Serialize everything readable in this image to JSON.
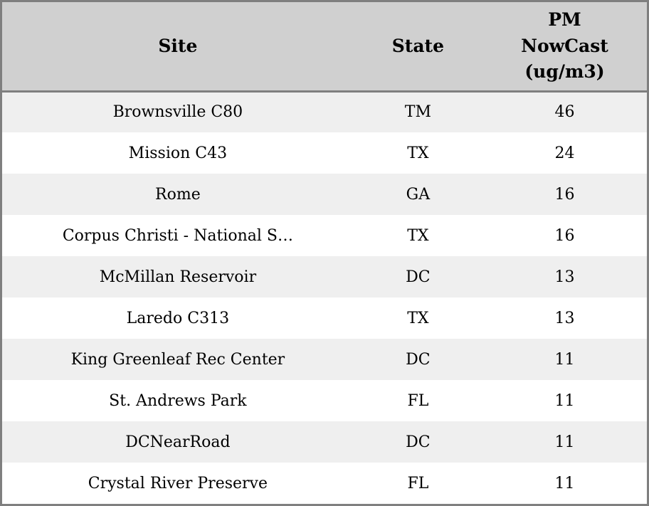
{
  "colors": {
    "border": "#7f7f7f",
    "header_bg": "#d0d0d0",
    "row_stripe_bg": "#efefef",
    "row_plain_bg": "#ffffff",
    "text": "#000000"
  },
  "table": {
    "headers": {
      "site": "Site",
      "state": "State",
      "pm": "PM\nNowCast\n(ug/m3)"
    },
    "rows": [
      {
        "site": "Brownsville C80",
        "state": "TM",
        "value": "46"
      },
      {
        "site": "Mission C43",
        "state": "TX",
        "value": "24"
      },
      {
        "site": "Rome",
        "state": "GA",
        "value": "16"
      },
      {
        "site": "Corpus Christi - National S…",
        "state": "TX",
        "value": "16"
      },
      {
        "site": "McMillan Reservoir",
        "state": "DC",
        "value": "13"
      },
      {
        "site": "Laredo C313",
        "state": "TX",
        "value": "13"
      },
      {
        "site": "King Greenleaf Rec Center",
        "state": "DC",
        "value": "11"
      },
      {
        "site": "St. Andrews Park",
        "state": "FL",
        "value": "11"
      },
      {
        "site": "DCNearRoad",
        "state": "DC",
        "value": "11"
      },
      {
        "site": "Crystal River Preserve",
        "state": "FL",
        "value": "11"
      }
    ]
  },
  "chart_data": {
    "type": "table",
    "title": "",
    "columns": [
      "Site",
      "State",
      "PM NowCast (ug/m3)"
    ],
    "rows": [
      [
        "Brownsville C80",
        "TM",
        46
      ],
      [
        "Mission C43",
        "TX",
        24
      ],
      [
        "Rome",
        "GA",
        16
      ],
      [
        "Corpus Christi - National S…",
        "TX",
        16
      ],
      [
        "McMillan Reservoir",
        "DC",
        13
      ],
      [
        "Laredo C313",
        "TX",
        13
      ],
      [
        "King Greenleaf Rec Center",
        "DC",
        11
      ],
      [
        "St. Andrews Park",
        "FL",
        11
      ],
      [
        "DCNearRoad",
        "DC",
        11
      ],
      [
        "Crystal River Preserve",
        "FL",
        11
      ]
    ],
    "layout_hints": {
      "header_background": "#d0d0d0",
      "striped_rows": true,
      "stripe_color": "#efefef",
      "outer_border": "3px solid #7f7f7f",
      "text_align": "center",
      "sorted_by": "PM NowCast (ug/m3) descending"
    }
  }
}
